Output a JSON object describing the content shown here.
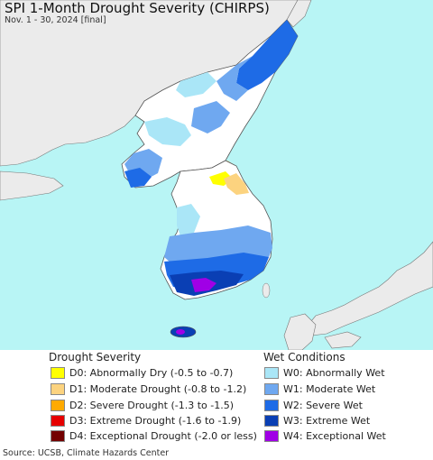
{
  "header": {
    "title": "SPI 1-Month Drought Severity (CHIRPS)",
    "subtitle": "Nov. 1 - 30, 2024 [final]"
  },
  "map": {
    "sea_color": "#b8f5f5",
    "land_color": "#ffffff",
    "foreign_land_color": "#ebebeb",
    "border_color": "#555555"
  },
  "legend": {
    "drought": {
      "heading": "Drought Severity",
      "items": [
        {
          "label": "D0: Abnormally Dry (-0.5 to -0.7)",
          "color": "#ffff00"
        },
        {
          "label": "D1: Moderate Drought (-0.8 to -1.2)",
          "color": "#fcd37f"
        },
        {
          "label": "D2: Severe Drought (-1.3 to -1.5)",
          "color": "#ffaa00"
        },
        {
          "label": "D3: Extreme Drought (-1.6 to -1.9)",
          "color": "#e60000"
        },
        {
          "label": "D4: Exceptional Drought (-2.0 or less)",
          "color": "#730000"
        }
      ]
    },
    "wet": {
      "heading": "Wet Conditions",
      "items": [
        {
          "label": "W0: Abnormally Wet",
          "color": "#aae6f7"
        },
        {
          "label": "W1: Moderate Wet",
          "color": "#6fa8f0"
        },
        {
          "label": "W2: Severe Wet",
          "color": "#1e6be6"
        },
        {
          "label": "W3: Extreme Wet",
          "color": "#0a3fb4"
        },
        {
          "label": "W4: Exceptional Wet",
          "color": "#a000e6"
        }
      ]
    }
  },
  "footer": {
    "source": "Source: UCSB, Climate Hazards Center"
  }
}
